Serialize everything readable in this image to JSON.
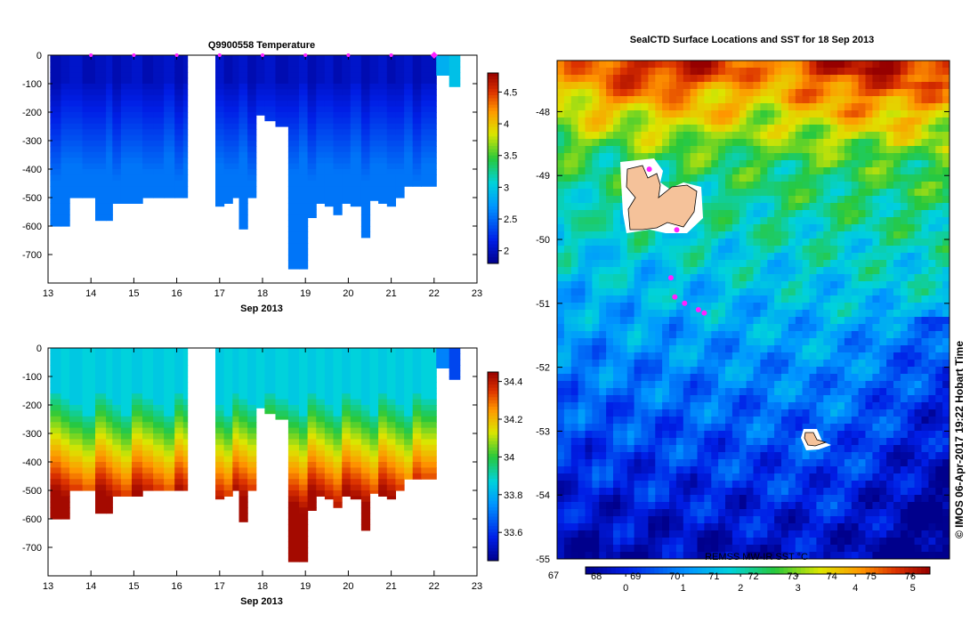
{
  "temp_panel": {
    "title": "Q9900558  Temperature",
    "xlabel": "Sep 2013",
    "x_ticks": [
      "13",
      "14",
      "15",
      "16",
      "17",
      "18",
      "19",
      "20",
      "21",
      "22",
      "23"
    ],
    "y_ticks": [
      "0",
      "-100",
      "-200",
      "-300",
      "-400",
      "-500",
      "-600",
      "-700"
    ],
    "colorbar_ticks": [
      "4.5",
      "4",
      "3.5",
      "3",
      "2.5",
      "2"
    ]
  },
  "sal_panel": {
    "xlabel": "Sep 2013",
    "x_ticks": [
      "13",
      "14",
      "15",
      "16",
      "17",
      "18",
      "19",
      "20",
      "21",
      "22",
      "23"
    ],
    "y_ticks": [
      "0",
      "-100",
      "-200",
      "-300",
      "-400",
      "-500",
      "-600",
      "-700"
    ],
    "colorbar_ticks": [
      "34.4",
      "34.2",
      "34",
      "33.8",
      "33.6"
    ]
  },
  "map_panel": {
    "title": "SealCTD Surface Locations and SST for 18 Sep 2013",
    "lat_ticks": [
      "-48",
      "-49",
      "-50",
      "-51",
      "-52",
      "-53",
      "-54",
      "-55"
    ],
    "lon_start": "67",
    "colorbar_label": "REMSS MW-IR SST °C",
    "colorbar_ticks": [
      "0",
      "1",
      "2",
      "3",
      "4",
      "5"
    ],
    "colorbar_lon_ticks": [
      "68",
      "69",
      "70",
      "71",
      "72",
      "73",
      "74",
      "75",
      "76"
    ]
  },
  "credit": "© IMOS 06-Apr-2017 19:22 Hobart Time",
  "chart_data": [
    {
      "type": "heatmap",
      "title": "Q9900558  Temperature",
      "xlabel": "Sep 2013",
      "ylabel": "",
      "xlim": [
        13,
        23
      ],
      "ylim": [
        -800,
        0
      ],
      "colorbar_range": [
        1.8,
        4.8
      ],
      "profile_times": [
        13.05,
        13.3,
        13.5,
        13.8,
        14.1,
        14.35,
        14.5,
        14.7,
        14.95,
        15.2,
        15.45,
        15.7,
        15.95,
        16.15,
        16.9,
        17.1,
        17.3,
        17.45,
        17.65,
        17.85,
        18.05,
        18.3,
        18.6,
        18.85,
        19.05,
        19.25,
        19.45,
        19.65,
        19.85,
        20.05,
        20.3,
        20.5,
        20.7,
        20.9,
        21.1,
        21.3,
        21.5,
        21.7,
        22.05,
        22.35
      ],
      "profile_max_depths": [
        -600,
        -600,
        -500,
        -500,
        -580,
        -580,
        -520,
        -520,
        -520,
        -500,
        -500,
        -500,
        -500,
        -500,
        -530,
        -520,
        -500,
        -610,
        -500,
        -210,
        -230,
        -250,
        -750,
        -750,
        -570,
        -520,
        -530,
        -560,
        -520,
        -530,
        -640,
        -510,
        -520,
        -530,
        -500,
        -460,
        -460,
        -460,
        -70,
        -110
      ],
      "surface_marker_days": [
        14.0,
        15.0,
        16.0,
        17.0,
        18.0,
        19.0,
        20.0,
        21.0,
        22.0
      ]
    },
    {
      "type": "heatmap",
      "title": "",
      "xlabel": "Sep 2013",
      "ylabel": "",
      "xlim": [
        13,
        23
      ],
      "ylim": [
        -800,
        0
      ],
      "colorbar_range": [
        33.45,
        34.45
      ],
      "profile_times": [
        13.05,
        13.3,
        13.5,
        13.8,
        14.1,
        14.35,
        14.5,
        14.7,
        14.95,
        15.2,
        15.45,
        15.7,
        15.95,
        16.15,
        16.9,
        17.1,
        17.3,
        17.45,
        17.65,
        17.85,
        18.05,
        18.3,
        18.6,
        18.85,
        19.05,
        19.25,
        19.45,
        19.65,
        19.85,
        20.05,
        20.3,
        20.5,
        20.7,
        20.9,
        21.1,
        21.3,
        21.5,
        21.7,
        22.05,
        22.35
      ],
      "profile_max_depths": [
        -600,
        -600,
        -500,
        -500,
        -580,
        -580,
        -520,
        -520,
        -520,
        -500,
        -500,
        -500,
        -500,
        -500,
        -530,
        -520,
        -500,
        -610,
        -500,
        -210,
        -230,
        -250,
        -750,
        -750,
        -570,
        -520,
        -530,
        -560,
        -520,
        -530,
        -640,
        -510,
        -520,
        -530,
        -500,
        -460,
        -460,
        -460,
        -70,
        -110
      ]
    },
    {
      "type": "heatmap",
      "title": "SealCTD Surface Locations and SST for 18 Sep 2013",
      "xlabel": "",
      "ylabel": "",
      "xlim": [
        67,
        77
      ],
      "ylim": [
        -55,
        -47.2
      ],
      "colorbar_range": [
        -0.7,
        5.3
      ],
      "seal_surface_locations": [
        [
          69.35,
          -48.9
        ],
        [
          70.05,
          -49.85
        ],
        [
          69.9,
          -50.6
        ],
        [
          70.0,
          -50.9
        ],
        [
          70.25,
          -51.0
        ],
        [
          70.6,
          -51.1
        ],
        [
          70.75,
          -51.15
        ]
      ]
    }
  ]
}
